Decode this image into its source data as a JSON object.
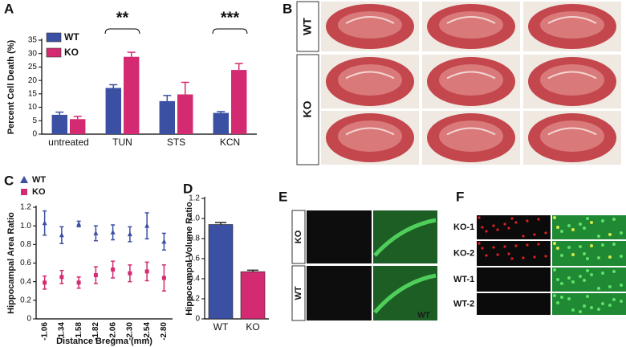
{
  "chart_data": [
    {
      "type": "bar",
      "panel_label": "A",
      "y_label": "Percent Cell Death (%)",
      "categories": [
        "untreated",
        "TUN",
        "STS",
        "KCN"
      ],
      "series": [
        {
          "name": "WT",
          "color": "#3b4fa3",
          "values": [
            7.2,
            17.2,
            12.3,
            7.9
          ],
          "errors": [
            1.0,
            1.2,
            2.1,
            0.5
          ]
        },
        {
          "name": "KO",
          "color": "#d42a72",
          "values": [
            5.6,
            28.8,
            14.8,
            23.9
          ],
          "errors": [
            1.0,
            1.7,
            4.5,
            2.4
          ]
        }
      ],
      "significance": [
        null,
        "**",
        null,
        "***"
      ],
      "ylim": [
        0,
        35
      ],
      "yticks": [
        0,
        5,
        10,
        15,
        20,
        25,
        30,
        35
      ],
      "legend": "inside"
    },
    {
      "type": "scatter",
      "panel_label": "C",
      "x_label": "Distance Bregma (mm)",
      "y_label": "Hippocampal Area Ratio",
      "categories": [
        "-1.06",
        "-1.34",
        "-1.58",
        "-1.82",
        "-2.06",
        "-2.30",
        "-2.54",
        "-2.80"
      ],
      "series": [
        {
          "name": "WT",
          "color": "#3b4fa3",
          "marker": "triangle",
          "values": [
            1.03,
            0.9,
            1.02,
            0.92,
            0.93,
            0.91,
            1.0,
            0.83
          ],
          "errors": [
            0.13,
            0.09,
            0.03,
            0.08,
            0.08,
            0.08,
            0.14,
            0.09
          ]
        },
        {
          "name": "KO",
          "color": "#d42a72",
          "marker": "square",
          "values": [
            0.39,
            0.45,
            0.39,
            0.47,
            0.53,
            0.49,
            0.51,
            0.44
          ],
          "errors": [
            0.07,
            0.07,
            0.06,
            0.09,
            0.09,
            0.09,
            0.1,
            0.14
          ]
        }
      ],
      "ylim": [
        0,
        1.2
      ],
      "yticks": [
        0,
        0.2,
        0.4,
        0.6,
        0.8,
        {
          "value": 1,
          "label": "1.0"
        },
        1.2
      ],
      "legend": "above"
    },
    {
      "type": "bar",
      "panel_label": "D",
      "y_label": "Hippocampal Volume Ratio",
      "categories": [
        "WT",
        "KO"
      ],
      "values": [
        0.94,
        0.47
      ],
      "errors": [
        0.02,
        0.015
      ],
      "colors": [
        "#3b4fa3",
        "#d42a72"
      ],
      "ylim": [
        0,
        1.2
      ],
      "yticks": [
        0,
        0.2,
        0.4,
        0.6,
        0.8,
        {
          "value": 1,
          "label": "1.0"
        },
        1.2
      ]
    }
  ],
  "images": [
    {
      "panel_label": "B",
      "rows": [
        "WT",
        "KO"
      ]
    },
    {
      "panel_label": "E",
      "rows": [
        "KO",
        "WT"
      ],
      "annotation": "WT"
    },
    {
      "panel_label": "F",
      "rows": [
        "KO-1",
        "KO-2",
        "WT-1",
        "WT-2"
      ]
    }
  ]
}
